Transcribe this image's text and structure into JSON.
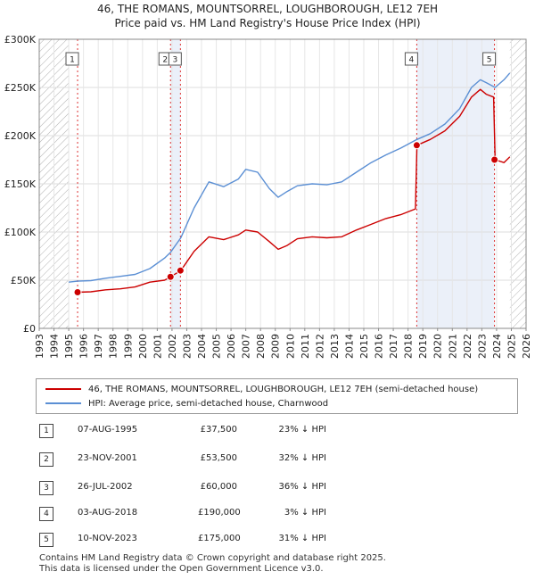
{
  "title_line1": "46, THE ROMANS, MOUNTSORREL, LOUGHBOROUGH, LE12 7EH",
  "title_line2": "Price paid vs. HM Land Registry's House Price Index (HPI)",
  "legend": {
    "property": "46, THE ROMANS, MOUNTSORREL, LOUGHBOROUGH, LE12 7EH (semi-detached house)",
    "hpi": "HPI: Average price, semi-detached house, Charnwood"
  },
  "colors": {
    "property": "#cc0000",
    "hpi": "#5b8fd4",
    "hatch": "#aaaaaa",
    "shade": "#e6ecf7"
  },
  "transactions": [
    {
      "num": "1",
      "date": "07-AUG-1995",
      "price": "£37,500",
      "hpi": "23% ↓ HPI"
    },
    {
      "num": "2",
      "date": "23-NOV-2001",
      "price": "£53,500",
      "hpi": "32% ↓ HPI"
    },
    {
      "num": "3",
      "date": "26-JUL-2002",
      "price": "£60,000",
      "hpi": "36% ↓ HPI"
    },
    {
      "num": "4",
      "date": "03-AUG-2018",
      "price": "£190,000",
      "hpi": "3% ↓ HPI"
    },
    {
      "num": "5",
      "date": "10-NOV-2023",
      "price": "£175,000",
      "hpi": "31% ↓ HPI"
    }
  ],
  "footer": {
    "line1": "Contains HM Land Registry data © Crown copyright and database right 2025.",
    "line2": "This data is licensed under the Open Government Licence v3.0."
  },
  "chart_data": {
    "type": "line",
    "title": "Price paid vs. HM Land Registry's House Price Index (HPI)",
    "xlim": [
      1993,
      2026
    ],
    "ylim": [
      0,
      300000
    ],
    "x_ticks": [
      1993,
      1994,
      1995,
      1996,
      1997,
      1998,
      1999,
      2000,
      2001,
      2002,
      2003,
      2004,
      2005,
      2006,
      2007,
      2008,
      2009,
      2010,
      2011,
      2012,
      2013,
      2014,
      2015,
      2016,
      2017,
      2018,
      2019,
      2020,
      2021,
      2022,
      2023,
      2024,
      2025,
      2026
    ],
    "y_ticks": [
      {
        "value": 0,
        "label": "£0"
      },
      {
        "value": 50000,
        "label": "£50K"
      },
      {
        "value": 100000,
        "label": "£100K"
      },
      {
        "value": 150000,
        "label": "£150K"
      },
      {
        "value": 200000,
        "label": "£200K"
      },
      {
        "value": 250000,
        "label": "£250K"
      },
      {
        "value": 300000,
        "label": "£300K"
      }
    ],
    "data_range": [
      1995.0,
      2024.9
    ],
    "series": [
      {
        "name": "HPI: Average price, semi-detached house, Charnwood",
        "x": [
          1995.0,
          1995.6,
          1996.5,
          1997.5,
          1998.5,
          1999.5,
          2000.5,
          2001.5,
          2001.9,
          2002.6,
          2003.5,
          2004.5,
          2005.5,
          2006.5,
          2007.0,
          2007.8,
          2008.6,
          2009.2,
          2009.8,
          2010.5,
          2011.5,
          2012.5,
          2013.5,
          2014.5,
          2015.5,
          2016.5,
          2017.5,
          2018.6,
          2019.5,
          2020.5,
          2021.5,
          2022.3,
          2022.9,
          2023.3,
          2023.9,
          2024.5,
          2024.9
        ],
        "values": [
          48000,
          49000,
          49500,
          52000,
          54000,
          56000,
          62000,
          73000,
          79000,
          94000,
          125000,
          152000,
          147000,
          155000,
          165000,
          162000,
          145000,
          136000,
          142000,
          148000,
          150000,
          149000,
          152000,
          162000,
          172000,
          180000,
          187000,
          196000,
          202000,
          212000,
          228000,
          250000,
          258000,
          255000,
          250000,
          258000,
          265000
        ]
      },
      {
        "name": "46, THE ROMANS, MOUNTSORREL, LOUGHBOROUGH, LE12 7EH (semi-detached house)",
        "x": [
          1995.6,
          1996.5,
          1997.5,
          1998.5,
          1999.5,
          2000.5,
          2001.5,
          2001.9,
          2002.6,
          2003.5,
          2004.5,
          2005.5,
          2006.5,
          2007.0,
          2007.8,
          2008.6,
          2009.2,
          2009.8,
          2010.5,
          2011.5,
          2012.5,
          2013.5,
          2014.5,
          2015.5,
          2016.5,
          2017.5,
          2018.5,
          2018.6,
          2019.5,
          2020.5,
          2021.5,
          2022.3,
          2022.9,
          2023.3,
          2023.8,
          2023.9,
          2024.5,
          2024.9
        ],
        "values": [
          37500,
          38000,
          40000,
          41000,
          43000,
          48000,
          50000,
          53500,
          60000,
          80000,
          95000,
          92000,
          97000,
          102000,
          100000,
          90000,
          82000,
          86000,
          93000,
          95000,
          94000,
          95000,
          102000,
          108000,
          114000,
          118000,
          124000,
          190000,
          196000,
          205000,
          220000,
          240000,
          248000,
          243000,
          240000,
          175000,
          172000,
          178000
        ]
      }
    ],
    "sales": [
      {
        "num": "1",
        "x": 1995.6,
        "value": 37500
      },
      {
        "num": "2",
        "x": 2001.9,
        "value": 53500
      },
      {
        "num": "3",
        "x": 2002.57,
        "value": 60000
      },
      {
        "num": "4",
        "x": 2018.59,
        "value": 190000
      },
      {
        "num": "5",
        "x": 2023.86,
        "value": 175000
      }
    ]
  }
}
